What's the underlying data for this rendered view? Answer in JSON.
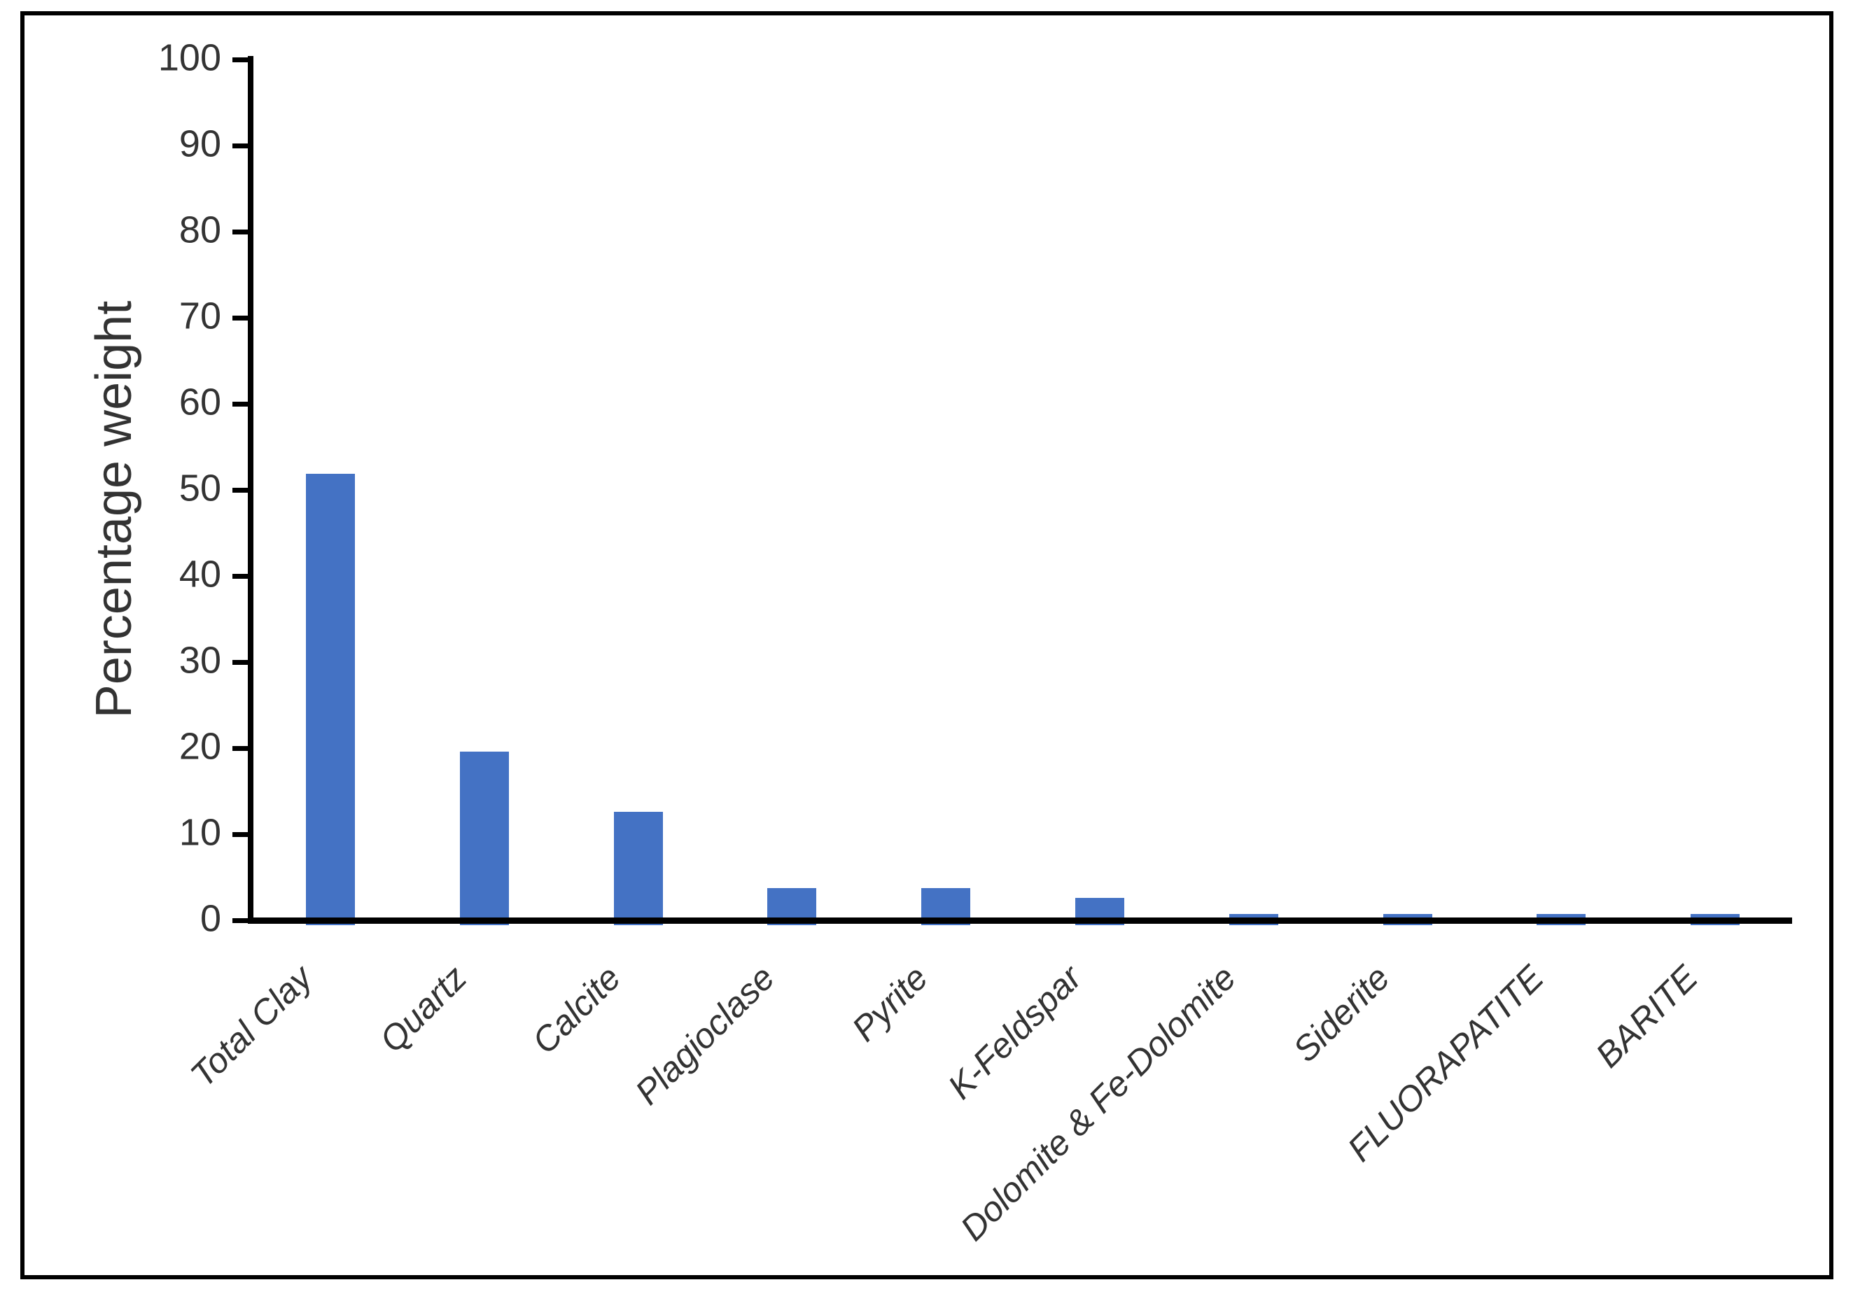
{
  "chart_data": {
    "type": "bar",
    "title": "",
    "xlabel": "",
    "ylabel": "Percentage weight",
    "categories": [
      "Total Clay",
      "Quartz",
      "Calcite",
      "Plagioclase",
      "Pyrite",
      "K-Feldspar",
      "Dolomite & Fe-Dolomite",
      "Siderite",
      "FLUORAPATITE",
      "BARITE"
    ],
    "values": [
      51.9,
      19.6,
      12.6,
      3.7,
      3.7,
      2.6,
      0.7,
      0.7,
      0.7,
      0.7
    ],
    "ylim": [
      0,
      100
    ],
    "yticks": [
      0,
      10,
      20,
      30,
      40,
      50,
      60,
      70,
      80,
      90,
      100
    ],
    "grid": false,
    "legend": "none",
    "bar_color": "#4472C4",
    "axis_color": "#000000",
    "text_color": "#333333",
    "frame_color": "#000000"
  }
}
